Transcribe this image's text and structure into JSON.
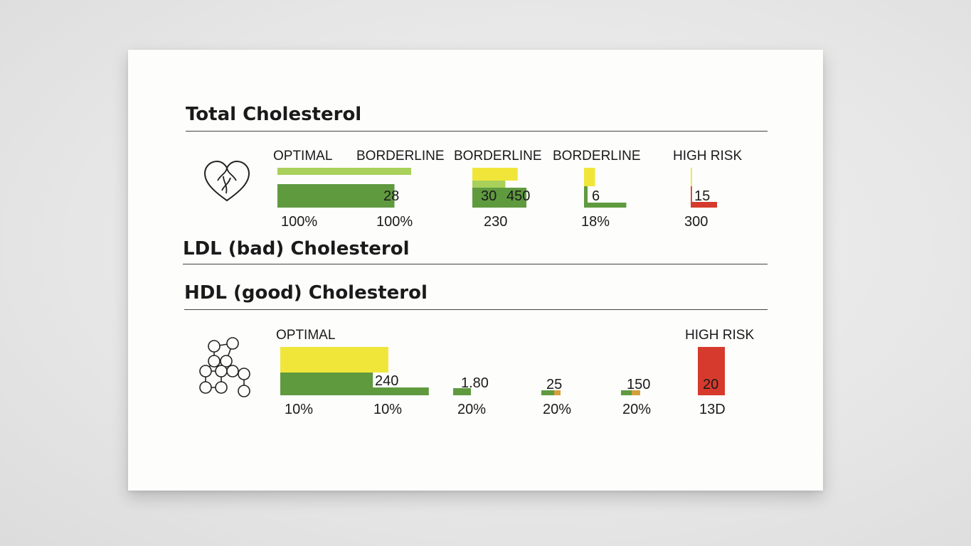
{
  "sections": {
    "total": {
      "title": "Total Cholesterol"
    },
    "ldl": {
      "title": "LDL (bad) Cholesterol"
    },
    "hdl": {
      "title": "HDL (good) Cholesterol"
    }
  },
  "icons": {
    "total": "heart-icon",
    "hdl": "molecule-icon"
  },
  "colors": {
    "light_green": "#a8d05a",
    "dark_green": "#5f9a3f",
    "yellow": "#f0e63a",
    "red": "#d63a2c",
    "orange": "#d4a03a"
  },
  "chart_data": [
    {
      "type": "bar",
      "title": "Total Cholesterol",
      "segments": [
        {
          "category": "OPTIMAL",
          "bars": [
            {
              "color": "light_green",
              "relative_length": 0.8
            },
            {
              "color": "dark_green",
              "relative_length": 0.7
            }
          ],
          "value_label": "",
          "percent_label": "100%"
        },
        {
          "category": "BORDERLINE",
          "bars": [],
          "value_label": "28",
          "percent_label": "100%"
        },
        {
          "category": "BORDERLINE",
          "bars": [
            {
              "color": "yellow",
              "relative_length": 0.55
            },
            {
              "color": "light_green",
              "relative_length": 0.4
            },
            {
              "color": "dark_green",
              "relative_length": 1.0
            }
          ],
          "value_label": "30",
          "extra_label": "450",
          "percent_label": "230"
        },
        {
          "category": "BORDERLINE",
          "bars": [
            {
              "color": "yellow",
              "relative_length": 0.25
            },
            {
              "color": "dark_green",
              "relative_length": 0.08
            },
            {
              "color": "dark_green",
              "relative_length": 0.9
            }
          ],
          "value_label": "6",
          "percent_label": "18%"
        },
        {
          "category": "HIGH RISK",
          "bars": [
            {
              "color": "yellow",
              "relative_length": 0.05
            },
            {
              "color": "red",
              "relative_length": 0.05
            },
            {
              "color": "red",
              "relative_length": 0.5
            }
          ],
          "value_label": "15",
          "percent_label": "300"
        }
      ]
    },
    {
      "type": "bar",
      "title": "HDL (good) Cholesterol",
      "segments": [
        {
          "category": "OPTIMAL",
          "bars": [
            {
              "color": "yellow",
              "relative_length": 0.7
            },
            {
              "color": "dark_green",
              "relative_length": 0.6
            }
          ],
          "value_label": "",
          "percent_label": "10%"
        },
        {
          "category": "",
          "bars": [
            {
              "color": "dark_green",
              "relative_length": 0.6
            }
          ],
          "value_label": "240",
          "percent_label": "10%"
        },
        {
          "category": "",
          "bars": [
            {
              "color": "dark_green",
              "relative_length": 0.2
            }
          ],
          "value_label": "1.80",
          "percent_label": "20%"
        },
        {
          "category": "",
          "bars": [
            {
              "color": "dark_green",
              "relative_length": 0.12
            },
            {
              "color": "orange",
              "relative_length": 0.06
            }
          ],
          "value_label": "25",
          "percent_label": "20%"
        },
        {
          "category": "",
          "bars": [
            {
              "color": "dark_green",
              "relative_length": 0.1
            },
            {
              "color": "orange",
              "relative_length": 0.08
            }
          ],
          "value_label": "150",
          "percent_label": "20%"
        },
        {
          "category": "HIGH RISK",
          "bars": [
            {
              "color": "red",
              "relative_length": 1.0
            }
          ],
          "value_label": "20",
          "percent_label": "13D"
        }
      ]
    }
  ]
}
